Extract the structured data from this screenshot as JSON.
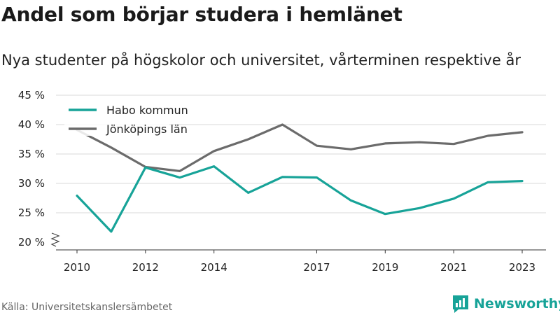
{
  "chart_data": {
    "type": "line",
    "title": "Andel som börjar studera i hemlänet",
    "subtitle": "Nya studenter på högskolor och universitet, vårterminen respektive år",
    "x": [
      2010,
      2011,
      2012,
      2013,
      2014,
      2015,
      2016,
      2017,
      2018,
      2019,
      2020,
      2021,
      2022,
      2023
    ],
    "x_ticks": [
      2010,
      2012,
      2014,
      2017,
      2019,
      2021,
      2023
    ],
    "y_ticks": [
      20,
      25,
      30,
      35,
      40,
      45
    ],
    "y_tick_labels": [
      "20 %",
      "25 %",
      "30 %",
      "35 %",
      "40 %",
      "45 %"
    ],
    "ylim": [
      20,
      45
    ],
    "y_axis_break": true,
    "grid": "horizontal",
    "legend_position": "top-left",
    "series": [
      {
        "name": "Habo kommun",
        "color": "#17a398",
        "values": [
          27.9,
          21.8,
          32.7,
          31.0,
          32.9,
          28.4,
          31.1,
          31.0,
          27.1,
          24.8,
          25.8,
          27.4,
          30.2,
          30.4
        ]
      },
      {
        "name": "Jönköpings län",
        "color": "#6b6b6b",
        "values": [
          39.1,
          36.1,
          32.8,
          32.1,
          35.5,
          37.5,
          40.0,
          36.4,
          35.8,
          36.8,
          37.0,
          36.7,
          38.1,
          38.7
        ]
      }
    ]
  },
  "source": "Källa: Universitetskanslersämbetet",
  "brand": {
    "name": "Newsworthy",
    "icon": "bar-chart-logo-icon",
    "color": "#17a398"
  }
}
